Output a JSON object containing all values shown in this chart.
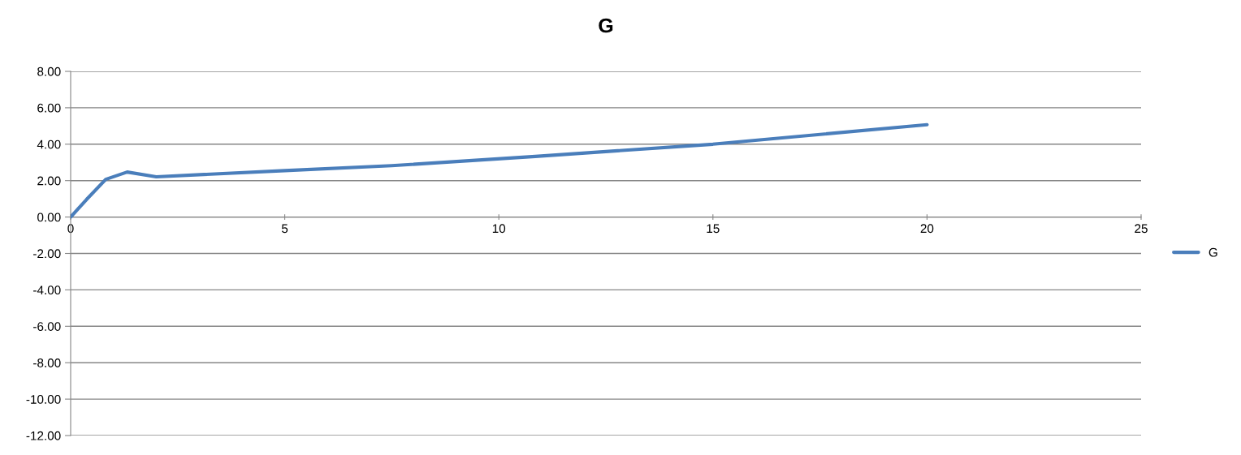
{
  "chart_data": {
    "type": "line",
    "title": "G",
    "x": [
      0,
      0.37,
      0.82,
      1.32,
      2.0,
      5,
      7.5,
      10.85,
      15,
      20
    ],
    "series": [
      {
        "name": "G",
        "color": "#4a7ebb",
        "values": [
          0,
          0.96,
          2.07,
          2.47,
          2.21,
          2.55,
          2.82,
          3.33,
          4.0,
          5.07
        ]
      }
    ],
    "xlim": [
      0,
      25
    ],
    "xticks": [
      0,
      5,
      10,
      15,
      20,
      25
    ],
    "ylim": [
      -12,
      8
    ],
    "yticks": [
      {
        "value": -12,
        "label": "-12.00"
      },
      {
        "value": -10,
        "label": "-10.00"
      },
      {
        "value": -8,
        "label": "-8.00"
      },
      {
        "value": -6,
        "label": "-6.00"
      },
      {
        "value": -4,
        "label": "-4.00"
      },
      {
        "value": -2,
        "label": "-2.00"
      },
      {
        "value": 0,
        "label": "0.00"
      },
      {
        "value": 2,
        "label": "2.00"
      },
      {
        "value": 4,
        "label": "4.00"
      },
      {
        "value": 6,
        "label": "6.00"
      },
      {
        "value": 8,
        "label": "8.00"
      }
    ],
    "grid": "y",
    "legend": "right",
    "marker": "none",
    "line_style": "solid"
  }
}
